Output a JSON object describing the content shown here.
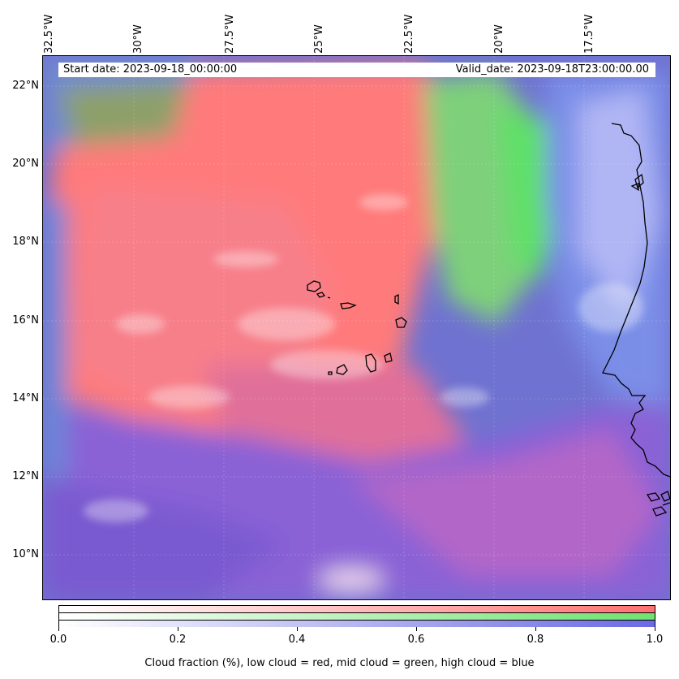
{
  "map": {
    "lon_labels": [
      "32.5°W",
      "30°W",
      "27.5°W",
      "25°W",
      "22.5°W",
      "20°W",
      "17.5°W"
    ],
    "lat_labels": [
      "22°N",
      "20°N",
      "18°N",
      "16°N",
      "14°N",
      "12°N",
      "10°N"
    ],
    "colors": {
      "low_cloud": "#ff6b6b",
      "mid_cloud": "#6ee36e",
      "high_cloud": "#6a6ae6",
      "ocean": "#5a78d8",
      "coastline": "#000000"
    }
  },
  "header": {
    "start_date": "Start date: 2023-09-18_00:00:00",
    "valid_date": "Valid_date: 2023-09-18T23:00:00.00"
  },
  "colorbar": {
    "ticks": [
      "0.0",
      "0.2",
      "0.4",
      "0.6",
      "0.8",
      "1.0"
    ],
    "caption": "Cloud fraction (%), low cloud = red, mid cloud = green, high cloud = blue"
  }
}
